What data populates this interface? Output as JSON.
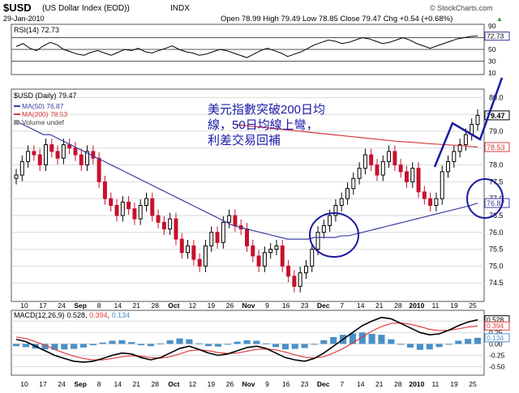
{
  "header": {
    "symbol": "$USD",
    "name": "(US Dollar Index (EOD))",
    "exchange": "INDX",
    "date": "29-Jan-2010",
    "ohlc": "Open 78.99  High 79.49  Low 78.85  Close 79.47  Chg +0.54 (+0.68%)",
    "ohlc_arrow": "▲",
    "brand": "© StockCharts.com"
  },
  "annotation": {
    "line1": "美元指數突破200日均",
    "line2": "線，50日均線上彎，",
    "line3": "利差交易回補"
  },
  "chart_data": [
    {
      "panel": "rsi",
      "type": "line",
      "title": "RSI(14) 72.73",
      "y_ticks": [
        "90",
        "70",
        "50",
        "30",
        "10"
      ],
      "last_value_label": "72.73",
      "ylim": [
        10,
        90
      ],
      "series": [
        {
          "name": "RSI(14)",
          "color": "#000000",
          "values": [
            55,
            60,
            52,
            48,
            56,
            62,
            58,
            50,
            46,
            42,
            40,
            45,
            48,
            44,
            40,
            45,
            50,
            48,
            52,
            46,
            44,
            48,
            52,
            56,
            50,
            46,
            44,
            40,
            42,
            46,
            50,
            48,
            44,
            40,
            36,
            42,
            48,
            52,
            48,
            44,
            38,
            42,
            46,
            52,
            58,
            62,
            66,
            64,
            60,
            62,
            66,
            70,
            68,
            64,
            60,
            62,
            66,
            70,
            66,
            60,
            56,
            52,
            56,
            60,
            64,
            68,
            70,
            72,
            73
          ]
        }
      ],
      "reference_lines": [
        70,
        50,
        30
      ]
    },
    {
      "panel": "price",
      "type": "candlestick",
      "title": "$USD (Daily) 79.47",
      "legend": [
        {
          "label": "MA(50) 76.87",
          "color": "#3a3fa0"
        },
        {
          "label": "MA(200) 78.53",
          "color": "#d83a3a"
        },
        {
          "label": "Volume undef",
          "color": "#777777"
        }
      ],
      "y_ticks": [
        "80.0",
        "79.5",
        "79.0",
        "78.5",
        "78.0",
        "77.5",
        "77.0",
        "76.5",
        "76.0",
        "75.5",
        "75.0",
        "74.5"
      ],
      "ylim": [
        74.0,
        80.2
      ],
      "price_labels": [
        "79.47",
        "78.53",
        "76.87"
      ],
      "close": [
        77.7,
        78.1,
        78.4,
        78.3,
        78.0,
        78.6,
        78.4,
        78.2,
        78.6,
        78.5,
        78.3,
        78.0,
        78.4,
        78.2,
        77.5,
        77.0,
        76.8,
        76.5,
        76.9,
        76.7,
        76.4,
        76.8,
        77.0,
        76.5,
        76.3,
        76.1,
        76.4,
        75.8,
        75.4,
        75.6,
        75.2,
        75.0,
        75.6,
        76.0,
        75.7,
        76.3,
        76.5,
        76.2,
        76.1,
        75.6,
        75.3,
        75.0,
        75.4,
        75.5,
        75.6,
        75.0,
        74.7,
        74.4,
        74.8,
        75.0,
        75.5,
        76.0,
        76.2,
        76.5,
        76.8,
        77.0,
        77.3,
        77.6,
        77.9,
        78.3,
        78.0,
        77.7,
        78.1,
        78.4,
        78.0,
        77.8,
        77.5,
        77.9,
        77.2,
        77.0,
        76.8,
        77.0,
        77.8,
        78.1,
        78.4,
        78.6,
        78.9,
        79.2,
        79.47
      ],
      "ma50": [
        79.3,
        79.2,
        79.1,
        79.0,
        78.9,
        78.9,
        78.8,
        78.7,
        78.6,
        78.5,
        78.4,
        78.3,
        78.2,
        78.1,
        78.0,
        77.9,
        77.8,
        77.7,
        77.6,
        77.5,
        77.4,
        77.3,
        77.2,
        77.1,
        77.0,
        76.9,
        76.8,
        76.7,
        76.6,
        76.5,
        76.4,
        76.3,
        76.2,
        76.15,
        76.1,
        76.05,
        76.0,
        75.95,
        75.9,
        75.85,
        75.8,
        75.8,
        75.8,
        75.8,
        75.85,
        75.85,
        75.85,
        75.85,
        75.9,
        75.9,
        75.95,
        76.0,
        76.05,
        76.1,
        76.15,
        76.2,
        76.25,
        76.3,
        76.35,
        76.4,
        76.45,
        76.5,
        76.55,
        76.6,
        76.65,
        76.7,
        76.75,
        76.8,
        76.87
      ],
      "ma200": [
        79.2,
        79.15,
        79.1,
        79.05,
        79.0,
        78.95,
        78.9,
        78.85,
        78.8,
        78.75,
        78.7,
        78.67,
        78.63,
        78.6,
        78.57,
        78.53
      ]
    },
    {
      "panel": "macd",
      "type": "line",
      "title": "MACD(12,26,9) 0.528, 0.394, 0.134",
      "title_parts": {
        "name": "MACD(12,26,9)",
        "macd": "0.528",
        "signal": "0.394",
        "hist": "0.134"
      },
      "y_ticks": [
        "0.50",
        "0.25",
        "0.00",
        "-0.25",
        "-0.50"
      ],
      "value_labels": [
        "0.528",
        "0.394",
        "0.134"
      ],
      "ylim": [
        -0.65,
        0.7
      ],
      "series": [
        {
          "name": "MACD",
          "color": "#000000",
          "values": [
            0.1,
            0.05,
            -0.05,
            -0.15,
            -0.25,
            -0.32,
            -0.38,
            -0.4,
            -0.38,
            -0.32,
            -0.25,
            -0.2,
            -0.22,
            -0.3,
            -0.35,
            -0.3,
            -0.2,
            -0.1,
            -0.05,
            -0.12,
            -0.2,
            -0.25,
            -0.22,
            -0.15,
            -0.08,
            -0.05,
            -0.1,
            -0.2,
            -0.3,
            -0.35,
            -0.38,
            -0.32,
            -0.2,
            -0.05,
            0.1,
            0.25,
            0.4,
            0.5,
            0.58,
            0.55,
            0.45,
            0.35,
            0.25,
            0.2,
            0.22,
            0.3,
            0.4,
            0.48,
            0.528
          ]
        },
        {
          "name": "Signal",
          "color": "#e03c3c",
          "values": [
            0.15,
            0.12,
            0.05,
            -0.03,
            -0.12,
            -0.2,
            -0.27,
            -0.32,
            -0.35,
            -0.35,
            -0.32,
            -0.28,
            -0.26,
            -0.27,
            -0.3,
            -0.31,
            -0.28,
            -0.22,
            -0.15,
            -0.13,
            -0.15,
            -0.19,
            -0.21,
            -0.2,
            -0.16,
            -0.12,
            -0.11,
            -0.13,
            -0.18,
            -0.24,
            -0.29,
            -0.31,
            -0.28,
            -0.2,
            -0.1,
            0.02,
            0.15,
            0.28,
            0.38,
            0.45,
            0.46,
            0.43,
            0.38,
            0.32,
            0.29,
            0.3,
            0.33,
            0.37,
            0.394
          ]
        }
      ]
    }
  ],
  "x_axis": {
    "labels": [
      "10",
      "17",
      "24",
      "Sep",
      "8",
      "14",
      "21",
      "28",
      "Oct",
      "12",
      "19",
      "26",
      "Nov",
      "9",
      "16",
      "23",
      "Dec",
      "7",
      "14",
      "21",
      "28",
      "2010",
      "11",
      "19",
      "25"
    ],
    "bold": [
      "Sep",
      "Oct",
      "Nov",
      "Dec",
      "2010"
    ]
  },
  "colors": {
    "up_candle": "#000000",
    "down_candle": "#c8102e",
    "ma50": "#3a3fa0",
    "ma200": "#d83a3a",
    "hist": "#4a90c8",
    "annotation_text": "#1a1aa8",
    "drawing": "#1a1aa0",
    "grid": "#d9d9d9"
  }
}
